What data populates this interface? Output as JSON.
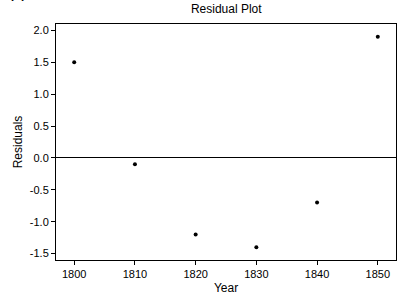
{
  "chart_data": {
    "type": "scatter",
    "title": "Residual Plot",
    "annotations": [
      {
        "text": "(B)"
      }
    ],
    "x_label": "Year",
    "y_label": "Residuals",
    "x": [
      1800,
      1810,
      1820,
      1830,
      1840,
      1850
    ],
    "values": [
      1.5,
      -0.1,
      -1.2,
      -1.4,
      -0.7,
      1.9
    ],
    "color": "#000000",
    "marker": "circle",
    "xlim": [
      1797,
      1853
    ],
    "xticks": [
      1800,
      1810,
      1820,
      1830,
      1840,
      1850
    ],
    "ylim": [
      -1.6,
      2.1
    ],
    "yticks": [
      -1.5,
      {
        "value": -1,
        "label": "-1.0"
      },
      -0.5,
      {
        "value": 0,
        "label": "0.0"
      },
      0.5,
      {
        "value": 1,
        "label": "1.0"
      },
      1.5,
      {
        "value": 2,
        "label": "2.0"
      }
    ],
    "grid": false
  }
}
